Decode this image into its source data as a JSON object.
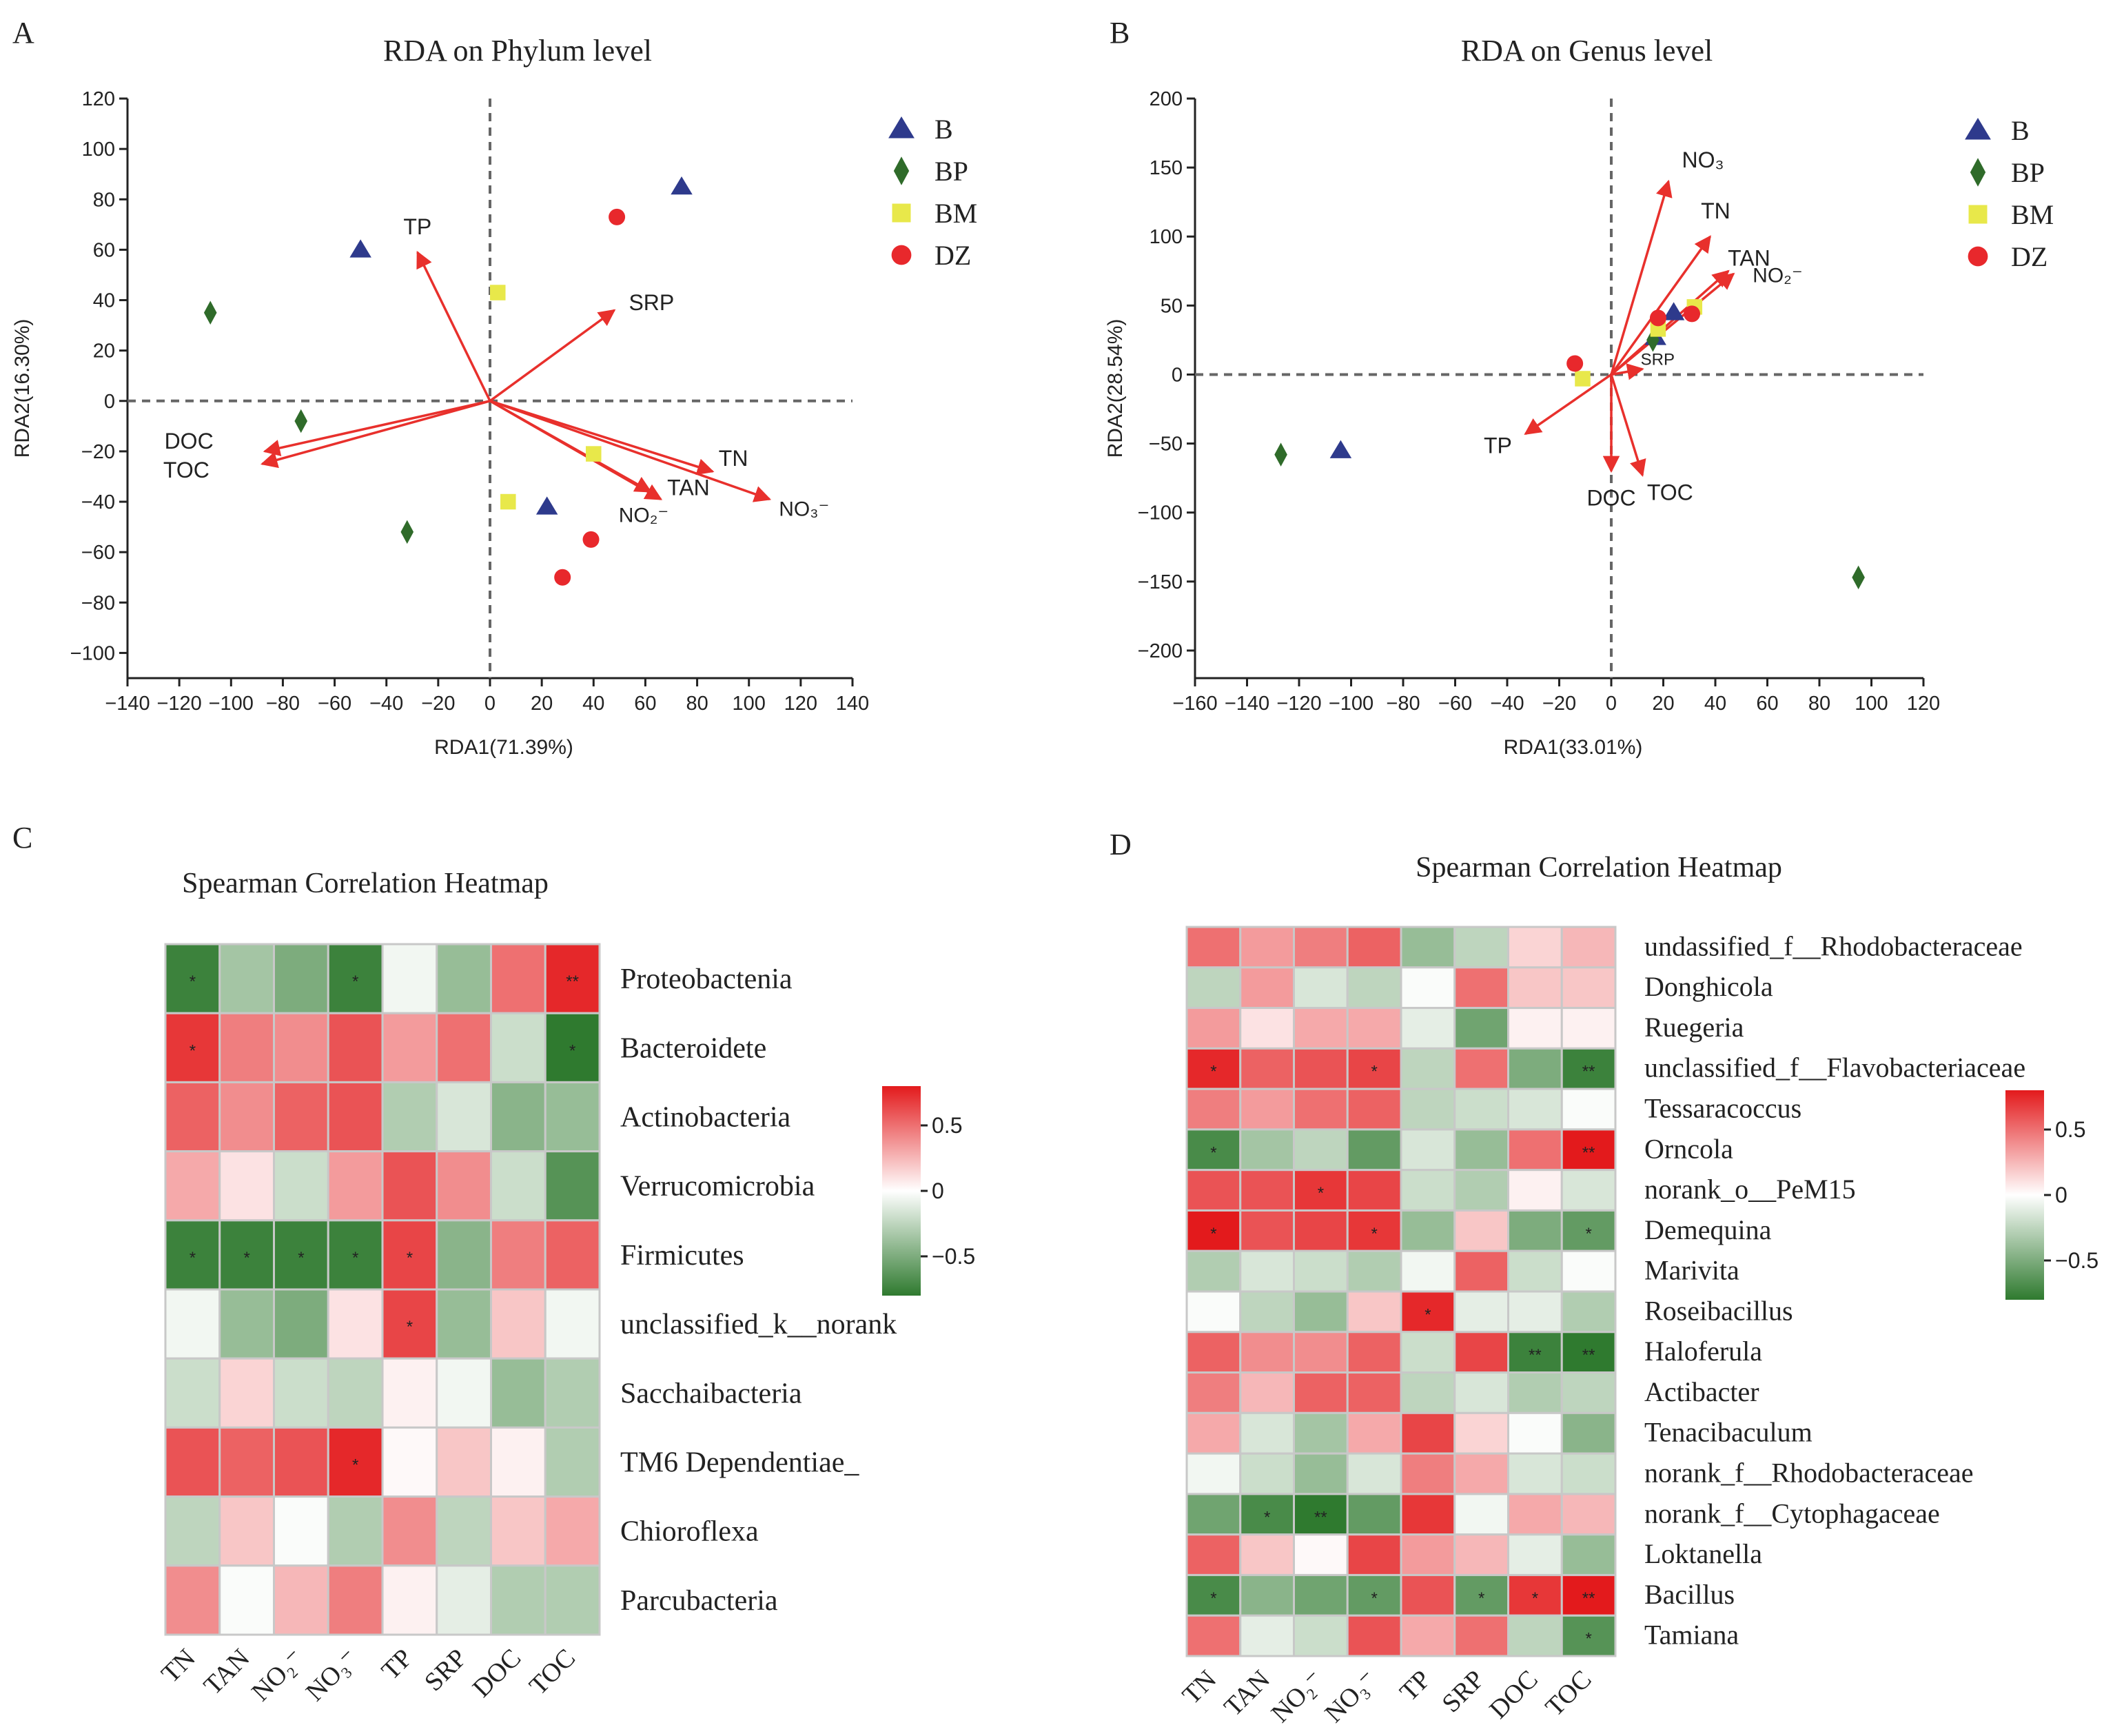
{
  "panels": {
    "A": {
      "label": "A"
    },
    "B": {
      "label": "B"
    },
    "C": {
      "label": "C"
    },
    "D": {
      "label": "D"
    }
  },
  "legend_marker_colors": {
    "B": "#2e3a8c",
    "BP": "#2f6b2a",
    "BM": "#e8e84a",
    "DZ": "#e8282c"
  },
  "arrow_color": "#e8302c",
  "chart_data": [
    {
      "type": "scatter",
      "panel": "A",
      "title": "RDA on Phylum level",
      "xlabel": "RDA1(71.39%)",
      "ylabel": "RDA2(16.30%)",
      "xlim": [
        -140,
        140
      ],
      "ylim": [
        -110,
        120
      ],
      "xticks": [
        -140,
        -120,
        -100,
        -80,
        -60,
        -40,
        -20,
        0,
        20,
        40,
        60,
        80,
        100,
        120,
        140
      ],
      "xtick_labels": [
        "−140",
        "−120",
        "−100",
        "−80",
        "−60",
        "−40",
        "−20",
        "0",
        "20",
        "40",
        "60",
        "80",
        "100",
        "120",
        "140"
      ],
      "yticks": [
        120,
        100,
        80,
        60,
        40,
        20,
        0,
        -20,
        -40,
        -60,
        -80,
        -100
      ],
      "ytick_labels": [
        "120",
        "100",
        "80",
        "60",
        "40",
        "20",
        "0",
        "−20",
        "−40",
        "−60",
        "−80",
        "−100"
      ],
      "legend": [
        "B",
        "BP",
        "BM",
        "DZ"
      ],
      "series": [
        {
          "name": "B",
          "marker": "triangle",
          "points": [
            [
              -50,
              60
            ],
            [
              74,
              85
            ],
            [
              22,
              -42
            ]
          ]
        },
        {
          "name": "BP",
          "marker": "diamond",
          "points": [
            [
              -108,
              35
            ],
            [
              -73,
              -8
            ],
            [
              -32,
              -52
            ]
          ]
        },
        {
          "name": "BM",
          "marker": "square",
          "points": [
            [
              3,
              43
            ],
            [
              40,
              -21
            ],
            [
              7,
              -40
            ]
          ]
        },
        {
          "name": "DZ",
          "marker": "circle",
          "points": [
            [
              49,
              73
            ],
            [
              39,
              -55
            ],
            [
              28,
              -70
            ]
          ]
        }
      ],
      "arrows": [
        {
          "label": "TP",
          "x": -28,
          "y": 59
        },
        {
          "label": "SRP",
          "x": 48,
          "y": 36
        },
        {
          "label": "DOC",
          "x": -87,
          "y": -20
        },
        {
          "label": "TOC",
          "x": -88,
          "y": -25
        },
        {
          "label": "TN",
          "x": 86,
          "y": -28
        },
        {
          "label": "TAN",
          "x": 66,
          "y": -39
        },
        {
          "label": "NO₂⁻",
          "x": 62,
          "y": -36
        },
        {
          "label": "NO₃⁻",
          "x": 108,
          "y": -39
        }
      ]
    },
    {
      "type": "scatter",
      "panel": "B",
      "title": "RDA on Genus level",
      "xlabel": "RDA1(33.01%)",
      "ylabel": "RDA2(28.54%)",
      "xlim": [
        -160,
        120
      ],
      "ylim": [
        -220,
        200
      ],
      "xticks": [
        -160,
        -140,
        -120,
        -100,
        -80,
        -60,
        -40,
        -20,
        0,
        20,
        40,
        60,
        80,
        100,
        120
      ],
      "xtick_labels": [
        "−160",
        "−140",
        "−120",
        "−100",
        "−80",
        "−60",
        "−40",
        "−20",
        "0",
        "20",
        "40",
        "60",
        "80",
        "100",
        "120"
      ],
      "yticks": [
        200,
        150,
        100,
        50,
        0,
        -50,
        -100,
        -150,
        -200
      ],
      "ytick_labels": [
        "200",
        "150",
        "100",
        "50",
        "0",
        "−50",
        "−100",
        "−150",
        "−200"
      ],
      "legend": [
        "B",
        "BP",
        "BM",
        "DZ"
      ],
      "series": [
        {
          "name": "B",
          "marker": "triangle",
          "points": [
            [
              -104,
              -55
            ],
            [
              24,
              45
            ],
            [
              17,
              27
            ]
          ]
        },
        {
          "name": "BP",
          "marker": "diamond",
          "points": [
            [
              -127,
              -58
            ],
            [
              95,
              -147
            ],
            [
              16,
              25
            ]
          ]
        },
        {
          "name": "BM",
          "marker": "square",
          "points": [
            [
              -11,
              -3
            ],
            [
              32,
              49
            ],
            [
              18,
              33
            ]
          ]
        },
        {
          "name": "DZ",
          "marker": "circle",
          "points": [
            [
              -14,
              8
            ],
            [
              31,
              44
            ],
            [
              18,
              41
            ]
          ]
        }
      ],
      "arrows": [
        {
          "label": "NO₃",
          "x": 22,
          "y": 140
        },
        {
          "label": "TN",
          "x": 38,
          "y": 100
        },
        {
          "label": "TAN",
          "x": 45,
          "y": 75
        },
        {
          "label": "NO₂⁻",
          "x": 47,
          "y": 73
        },
        {
          "label": "SRP",
          "x": 12,
          "y": 4
        },
        {
          "label": "TP",
          "x": -33,
          "y": -43
        },
        {
          "label": "DOC",
          "x": 0,
          "y": -70
        },
        {
          "label": "TOC",
          "x": 12,
          "y": -73
        }
      ]
    },
    {
      "type": "heatmap",
      "panel": "C",
      "title": "Spearman Correlation Heatmap",
      "columns": [
        "TN",
        "TAN",
        "NO₂⁻",
        "NO₃⁻",
        "TP",
        "SRP",
        "DOC",
        "TOC"
      ],
      "rows": [
        "Proteobactenia",
        "Bacteroidete",
        "Actinobacteria",
        "Verrucomicrobia",
        "Firmicutes",
        "unclassified_k__norank",
        "Sacchaibacteria",
        "TM6 Dependentiae_",
        "Chioroflexa",
        "Parcubacteria"
      ],
      "values": [
        [
          -0.75,
          -0.35,
          -0.5,
          -0.75,
          -0.05,
          -0.4,
          0.5,
          0.75
        ],
        [
          0.7,
          0.45,
          0.4,
          0.6,
          0.35,
          0.5,
          -0.2,
          -0.8
        ],
        [
          0.55,
          0.4,
          0.55,
          0.6,
          -0.3,
          -0.15,
          -0.45,
          -0.4
        ],
        [
          0.3,
          0.1,
          -0.2,
          0.35,
          0.6,
          0.4,
          -0.2,
          -0.65
        ],
        [
          -0.75,
          -0.75,
          -0.75,
          -0.75,
          0.65,
          -0.45,
          0.45,
          0.55
        ],
        [
          -0.05,
          -0.4,
          -0.5,
          0.1,
          0.65,
          -0.4,
          0.2,
          -0.05
        ],
        [
          -0.2,
          0.15,
          -0.2,
          -0.25,
          0.05,
          -0.05,
          -0.4,
          -0.3
        ],
        [
          0.6,
          0.55,
          0.6,
          0.75,
          0.02,
          0.2,
          0.05,
          -0.3
        ],
        [
          -0.25,
          0.2,
          -0.02,
          -0.3,
          0.4,
          -0.25,
          0.2,
          0.3
        ],
        [
          0.4,
          -0.02,
          0.25,
          0.45,
          0.05,
          -0.1,
          -0.3,
          -0.3
        ]
      ],
      "significance": [
        [
          "*",
          "",
          "",
          "*",
          "",
          "",
          "",
          "**"
        ],
        [
          "*",
          "",
          "",
          "",
          "",
          "",
          "",
          "*"
        ],
        [
          "",
          "",
          "",
          "",
          "",
          "",
          "",
          ""
        ],
        [
          "",
          "",
          "",
          "",
          "",
          "",
          "",
          ""
        ],
        [
          "*",
          "*",
          "*",
          "*",
          "*",
          "",
          "",
          ""
        ],
        [
          "",
          "",
          "",
          "",
          "*",
          "",
          "",
          ""
        ],
        [
          "",
          "",
          "",
          "",
          "",
          "",
          "",
          ""
        ],
        [
          "",
          "",
          "",
          "*",
          "",
          "",
          "",
          ""
        ],
        [
          "",
          "",
          "",
          "",
          "",
          "",
          "",
          ""
        ],
        [
          "",
          "",
          "",
          "",
          "",
          "",
          "",
          ""
        ]
      ],
      "colorbar": {
        "min": -0.8,
        "max": 0.8,
        "ticks": [
          0.5,
          0,
          -0.5
        ],
        "tick_labels": [
          "0.5",
          "0",
          "−0.5"
        ]
      }
    },
    {
      "type": "heatmap",
      "panel": "D",
      "title": "Spearman Correlation Heatmap",
      "columns": [
        "TN",
        "TAN",
        "NO₂⁻",
        "NO₃⁻",
        "TP",
        "SRP",
        "DOC",
        "TOC"
      ],
      "rows": [
        "undassified_f__Rhodobacteraceae",
        "Donghicola",
        "Ruegeria",
        "unclassified_f__Flavobacteriaceae",
        "Tessaracoccus",
        "Orncola",
        "norank_o__PeM15",
        "Demequina",
        "Marivita",
        "Roseibacillus",
        "Haloferula",
        "Actibacter",
        "Tenacibaculum",
        "norank_f__Rhodobacteraceae",
        "norank_f__Cytophagaceae",
        "Loktanella",
        "Bacillus",
        "Tamiana"
      ],
      "values": [
        [
          0.5,
          0.35,
          0.45,
          0.55,
          -0.4,
          -0.25,
          0.15,
          0.25
        ],
        [
          -0.25,
          0.35,
          -0.15,
          -0.25,
          -0.02,
          0.5,
          0.2,
          0.2
        ],
        [
          0.35,
          0.1,
          0.3,
          0.3,
          -0.1,
          -0.55,
          0.05,
          0.05
        ],
        [
          0.75,
          0.55,
          0.6,
          0.65,
          -0.25,
          0.5,
          -0.5,
          -0.75
        ],
        [
          0.45,
          0.35,
          0.5,
          0.55,
          -0.25,
          -0.2,
          -0.15,
          -0.02
        ],
        [
          -0.7,
          -0.35,
          -0.25,
          -0.6,
          -0.15,
          -0.4,
          0.5,
          0.8
        ],
        [
          0.6,
          0.6,
          0.7,
          0.65,
          -0.2,
          -0.3,
          0.05,
          -0.15
        ],
        [
          0.8,
          0.6,
          0.65,
          0.7,
          -0.4,
          0.2,
          -0.5,
          -0.6
        ],
        [
          -0.3,
          -0.15,
          -0.2,
          -0.3,
          -0.05,
          0.55,
          -0.2,
          -0.02
        ],
        [
          -0.02,
          -0.25,
          -0.4,
          0.2,
          0.75,
          -0.1,
          -0.1,
          -0.3
        ],
        [
          0.55,
          0.4,
          0.4,
          0.55,
          -0.2,
          0.65,
          -0.75,
          -0.8
        ],
        [
          0.45,
          0.25,
          0.55,
          0.55,
          -0.25,
          -0.15,
          -0.3,
          -0.25
        ],
        [
          0.3,
          -0.15,
          -0.35,
          0.3,
          0.65,
          0.15,
          -0.02,
          -0.45
        ],
        [
          -0.05,
          -0.2,
          -0.4,
          -0.15,
          0.45,
          0.3,
          -0.15,
          -0.2
        ],
        [
          -0.55,
          -0.7,
          -0.8,
          -0.6,
          0.7,
          -0.05,
          0.3,
          0.25
        ],
        [
          0.55,
          0.2,
          0.02,
          0.65,
          0.35,
          0.25,
          -0.1,
          -0.4
        ],
        [
          -0.7,
          -0.45,
          -0.55,
          -0.6,
          0.6,
          -0.6,
          0.7,
          0.8
        ],
        [
          0.5,
          -0.1,
          -0.2,
          0.6,
          0.3,
          0.5,
          -0.25,
          -0.65
        ]
      ],
      "significance": [
        [
          "",
          "",
          "",
          "",
          "",
          "",
          "",
          ""
        ],
        [
          "",
          "",
          "",
          "",
          "",
          "",
          "",
          ""
        ],
        [
          "",
          "",
          "",
          "",
          "",
          "",
          "",
          ""
        ],
        [
          "*",
          "",
          "",
          "*",
          "",
          "",
          "",
          "**"
        ],
        [
          "",
          "",
          "",
          "",
          "",
          "",
          "",
          ""
        ],
        [
          "*",
          "",
          "",
          "",
          "",
          "",
          "",
          "**"
        ],
        [
          "",
          "",
          "*",
          "",
          "",
          "",
          "",
          ""
        ],
        [
          "*",
          "",
          "",
          "*",
          "",
          "",
          "",
          "*"
        ],
        [
          "",
          "",
          "",
          "",
          "",
          "",
          "",
          ""
        ],
        [
          "",
          "",
          "",
          "",
          "*",
          "",
          "",
          ""
        ],
        [
          "",
          "",
          "",
          "",
          "",
          "",
          "**",
          "**"
        ],
        [
          "",
          "",
          "",
          "",
          "",
          "",
          "",
          ""
        ],
        [
          "",
          "",
          "",
          "",
          "",
          "",
          "",
          ""
        ],
        [
          "",
          "",
          "",
          "",
          "",
          "",
          "",
          ""
        ],
        [
          "",
          "*",
          "**",
          "",
          "",
          "",
          "",
          ""
        ],
        [
          "",
          "",
          "",
          "",
          "",
          "",
          "",
          ""
        ],
        [
          "*",
          "",
          "",
          "*",
          "",
          "*",
          "*",
          "**"
        ],
        [
          "",
          "",
          "",
          "",
          "",
          "",
          "",
          "*"
        ]
      ],
      "colorbar": {
        "min": -0.8,
        "max": 0.8,
        "ticks": [
          0.5,
          0,
          -0.5
        ],
        "tick_labels": [
          "0.5",
          "0",
          "−0.5"
        ]
      }
    }
  ]
}
